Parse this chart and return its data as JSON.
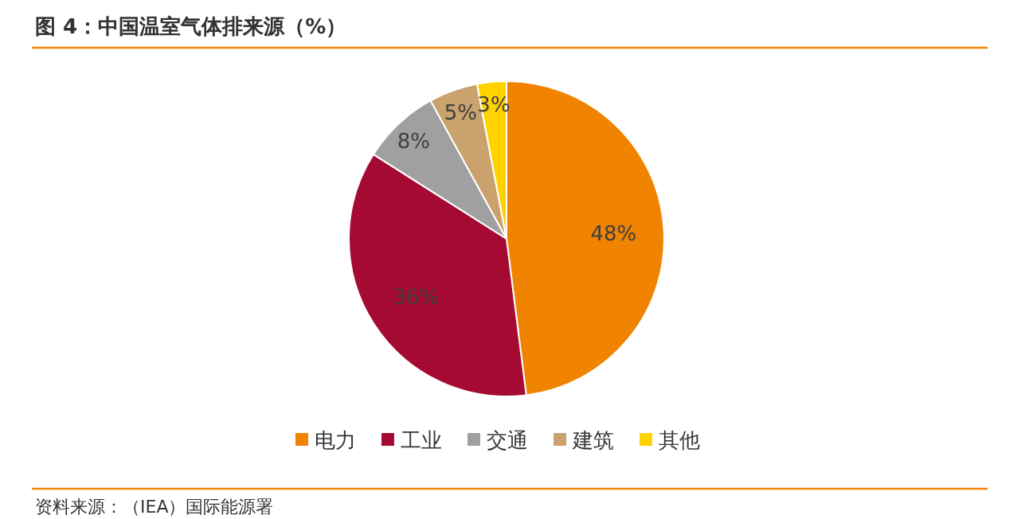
{
  "chart_data": {
    "type": "pie",
    "title": "图 4：中国温室气体排来源（%）",
    "categories": [
      "电力",
      "工业",
      "交通",
      "建筑",
      "其他"
    ],
    "values": [
      48,
      36,
      8,
      5,
      3
    ],
    "colors": [
      "#f08300",
      "#a50a32",
      "#a0a0a0",
      "#c9a26e",
      "#ffd200"
    ],
    "value_labels": [
      "48%",
      "36%",
      "8%",
      "5%",
      "3%"
    ],
    "legend": "bottom",
    "annotations": [
      "资料来源：（IEA）国际能源署"
    ]
  }
}
